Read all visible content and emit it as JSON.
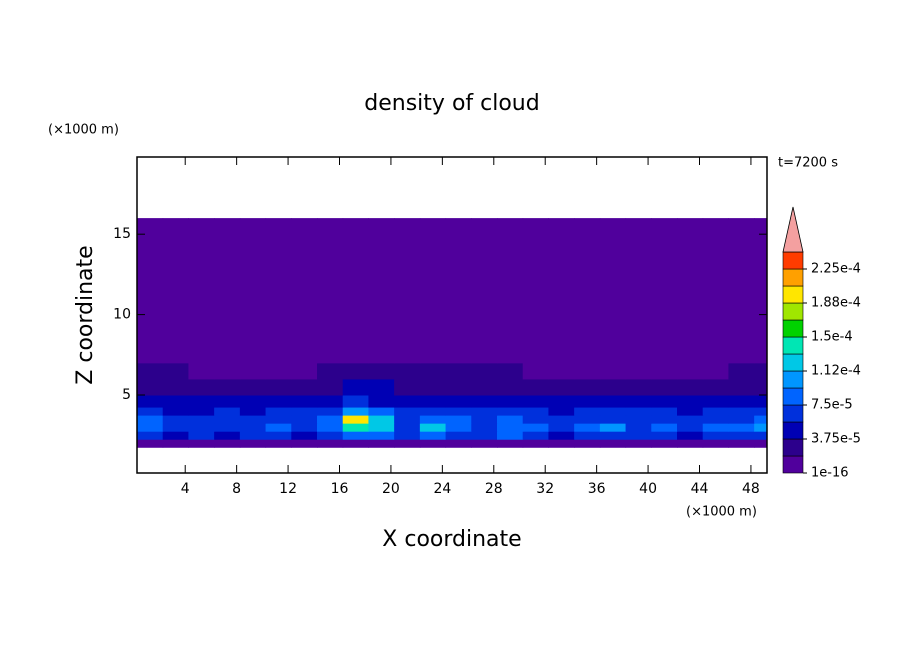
{
  "chart_data": {
    "type": "contour",
    "title": "density of cloud",
    "x_label": "X coordinate",
    "y_label": "Z coordinate",
    "x_unit": "(×1000 m)",
    "y_unit": "(×1000 m)",
    "time_label": "t=7200 s",
    "xlim": [
      0.25,
      49.25
    ],
    "ylim": [
      0.15,
      19.8
    ],
    "xticks": [
      4,
      8,
      12,
      16,
      20,
      24,
      28,
      32,
      36,
      40,
      44,
      48
    ],
    "yticks": [
      5,
      10,
      15
    ],
    "x_edges": [
      0.25,
      2.25,
      4.25,
      6.25,
      8.25,
      10.25,
      12.25,
      14.25,
      16.25,
      18.25,
      20.25,
      22.25,
      24.25,
      26.25,
      28.25,
      30.25,
      32.25,
      34.25,
      36.25,
      38.25,
      40.25,
      42.25,
      44.25,
      46.25,
      48.25,
      49.25
    ],
    "z_edges": [
      1.75,
      2.25,
      2.75,
      3.25,
      3.75,
      4.25,
      5,
      6,
      7,
      16
    ],
    "z": [
      [
        1e-05,
        1e-05,
        1e-05,
        1e-05,
        1e-05,
        1e-05,
        1e-05,
        1e-05,
        1e-05,
        1e-05,
        1e-05,
        1e-05,
        1e-05,
        1e-05,
        1e-05,
        1e-05,
        1e-05,
        1e-05,
        1e-05,
        1e-05,
        1e-05,
        1e-05,
        1e-05,
        1e-05,
        1e-05
      ],
      [
        6e-05,
        5e-05,
        6e-05,
        5e-05,
        6e-05,
        7e-05,
        5e-05,
        6e-05,
        9e-05,
        8e-05,
        6e-05,
        8e-05,
        7e-05,
        6e-05,
        8e-05,
        6e-05,
        5e-05,
        6e-05,
        7e-05,
        6e-05,
        6e-05,
        5e-05,
        6e-05,
        6e-05,
        7e-05
      ],
      [
        9e-05,
        7e-05,
        6e-05,
        7e-05,
        7e-05,
        9e-05,
        7e-05,
        8e-05,
        0.00014,
        0.00012,
        7e-05,
        0.00013,
        9e-05,
        7e-05,
        9e-05,
        8e-05,
        7e-05,
        8e-05,
        0.0001,
        7e-05,
        8e-05,
        7e-05,
        8e-05,
        8e-05,
        0.0001
      ],
      [
        8e-05,
        7e-05,
        6e-05,
        7e-05,
        6e-05,
        7e-05,
        7e-05,
        8e-05,
        0.00019,
        0.00013,
        7e-05,
        9e-05,
        8e-05,
        7e-05,
        8e-05,
        7e-05,
        6e-05,
        7e-05,
        7e-05,
        7e-05,
        7e-05,
        6e-05,
        7e-05,
        7e-05,
        8e-05
      ],
      [
        6e-05,
        5e-05,
        5e-05,
        6e-05,
        5e-05,
        6e-05,
        6e-05,
        7e-05,
        0.00011,
        9e-05,
        6e-05,
        7e-05,
        7e-05,
        6e-05,
        6e-05,
        6e-05,
        5e-05,
        6e-05,
        6e-05,
        6e-05,
        6e-05,
        5e-05,
        6e-05,
        6e-05,
        6e-05
      ],
      [
        4.5e-05,
        4.5e-05,
        4e-05,
        4.5e-05,
        4e-05,
        4e-05,
        4.5e-05,
        5e-05,
        6e-05,
        5e-05,
        4.5e-05,
        4.5e-05,
        4.5e-05,
        4.5e-05,
        4.5e-05,
        4e-05,
        4e-05,
        4e-05,
        4e-05,
        4e-05,
        4e-05,
        4e-05,
        4e-05,
        4.5e-05,
        4.5e-05
      ],
      [
        3e-05,
        3e-05,
        3e-05,
        3e-05,
        3e-05,
        3e-05,
        3e-05,
        3e-05,
        4e-05,
        4e-05,
        3e-05,
        3e-05,
        3e-05,
        3e-05,
        3e-05,
        3e-05,
        3e-05,
        3e-05,
        3e-05,
        3e-05,
        3e-05,
        3e-05,
        3e-05,
        3e-05,
        3e-05
      ],
      [
        2.5e-05,
        2.5e-05,
        1.5e-05,
        1.5e-05,
        1.5e-05,
        1.5e-05,
        1.5e-05,
        2.5e-05,
        2.5e-05,
        2.5e-05,
        2.5e-05,
        2.5e-05,
        2.5e-05,
        2.5e-05,
        2.5e-05,
        1.5e-05,
        1.5e-05,
        1.5e-05,
        1.5e-05,
        1.5e-05,
        1.5e-05,
        1.5e-05,
        1.5e-05,
        2.5e-05,
        2.5e-05
      ],
      [
        5e-06,
        5e-06,
        5e-06,
        5e-06,
        5e-06,
        5e-06,
        5e-06,
        5e-06,
        5e-06,
        5e-06,
        5e-06,
        5e-06,
        5e-06,
        5e-06,
        5e-06,
        5e-06,
        5e-06,
        5e-06,
        5e-06,
        5e-06,
        5e-06,
        5e-06,
        5e-06,
        5e-06,
        5e-06
      ]
    ],
    "colorbar": {
      "clim": [
        1e-16,
        0.00024375
      ],
      "ticks": [
        1e-16,
        {
          "value": 3.75e-05,
          "label": "3.75e-5"
        },
        {
          "value": 7.5e-05,
          "label": "7.5e-5"
        },
        {
          "value": 0.0001125,
          "label": "1.12e-4"
        },
        {
          "value": 0.00015,
          "label": "1.5e-4"
        },
        {
          "value": 0.0001875,
          "label": "1.88e-4"
        },
        {
          "value": 0.000225,
          "label": "2.25e-4"
        }
      ],
      "colors": [
        "#50009c",
        "#2c008c",
        "#0000b4",
        "#0030dc",
        "#0064ff",
        "#0096ff",
        "#00c8e6",
        "#00e6b4",
        "#00d200",
        "#a0e600",
        "#ffe600",
        "#ffa000",
        "#ff3c00"
      ],
      "over_color": "#f4a0a0"
    }
  }
}
